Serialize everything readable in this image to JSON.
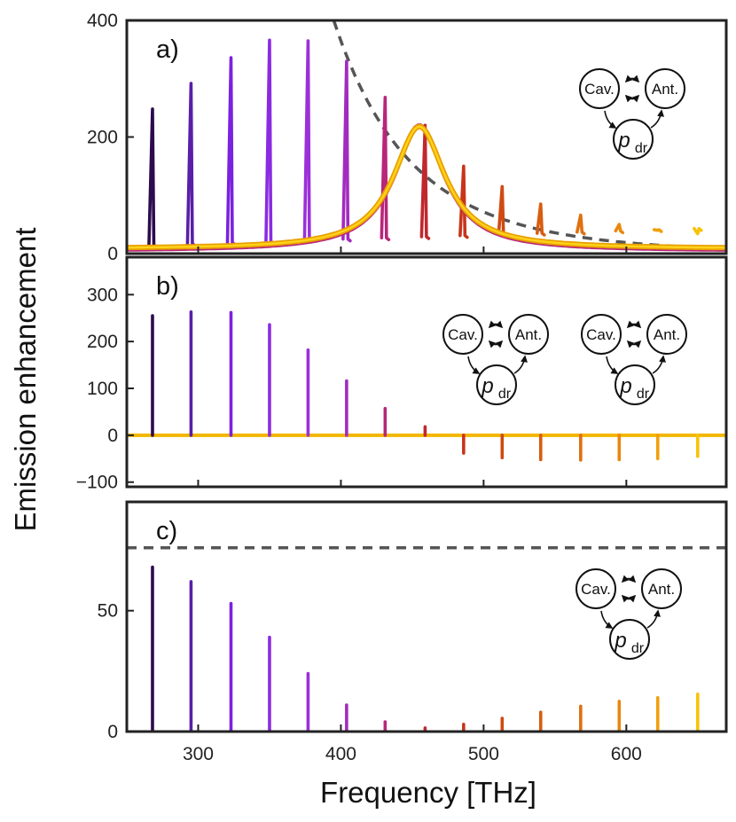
{
  "chart_data": [
    {
      "type": "line",
      "panel_label": "a)",
      "xlabel": "Frequency [THz]",
      "ylabel": "Emission enhancement",
      "xlim": [
        250,
        670
      ],
      "ylim": [
        0,
        400
      ],
      "yticks": [
        0,
        200,
        400
      ],
      "xticks": [
        300,
        400,
        500,
        600
      ],
      "peaks": [
        {
          "x": 268,
          "value": 248,
          "color": "#2d0b4e"
        },
        {
          "x": 295,
          "value": 292,
          "color": "#5a1fa8"
        },
        {
          "x": 323,
          "value": 336,
          "color": "#7a22e0"
        },
        {
          "x": 350,
          "value": 366,
          "color": "#8a2be2"
        },
        {
          "x": 377,
          "value": 365,
          "color": "#9b30d9"
        },
        {
          "x": 404,
          "value": 330,
          "color": "#a22bbf"
        },
        {
          "x": 431,
          "value": 268,
          "color": "#b8267a"
        },
        {
          "x": 459,
          "value": 220,
          "color": "#c0282e"
        },
        {
          "x": 486,
          "value": 150,
          "color": "#c8351a"
        },
        {
          "x": 513,
          "value": 115,
          "color": "#d04a12"
        },
        {
          "x": 540,
          "value": 85,
          "color": "#d85d10"
        },
        {
          "x": 568,
          "value": 66,
          "color": "#e07010"
        },
        {
          "x": 595,
          "value": 50,
          "color": "#e8880e"
        },
        {
          "x": 622,
          "value": 40,
          "color": "#f0a00c"
        },
        {
          "x": 650,
          "value": 34,
          "color": "#f7c20a"
        }
      ],
      "antenna_peak": {
        "center": 455,
        "value": 210,
        "width": 22
      },
      "envelope": {
        "dashed": true,
        "color": "#555555"
      },
      "diagram": {
        "nodes": [
          "Cav.",
          "Ant.",
          "p",
          "dr"
        ]
      }
    },
    {
      "type": "line",
      "panel_label": "b)",
      "xlim": [
        250,
        670
      ],
      "ylim": [
        -110,
        380
      ],
      "yticks": [
        -100,
        0,
        100,
        200,
        300
      ],
      "xticks": [
        300,
        400,
        500,
        600
      ],
      "peaks": [
        {
          "x": 268,
          "value": 255,
          "color": "#2d0b4e"
        },
        {
          "x": 295,
          "value": 263,
          "color": "#5a1fa8"
        },
        {
          "x": 323,
          "value": 262,
          "color": "#7a22e0"
        },
        {
          "x": 350,
          "value": 236,
          "color": "#8a2be2"
        },
        {
          "x": 377,
          "value": 182,
          "color": "#9b30d9"
        },
        {
          "x": 404,
          "value": 116,
          "color": "#a22bbf"
        },
        {
          "x": 431,
          "value": 57,
          "color": "#b8267a"
        },
        {
          "x": 459,
          "value": 18,
          "color": "#c0282e"
        },
        {
          "x": 486,
          "value": -38,
          "color": "#c8351a"
        },
        {
          "x": 513,
          "value": -48,
          "color": "#d04a12"
        },
        {
          "x": 540,
          "value": -52,
          "color": "#d85d10"
        },
        {
          "x": 568,
          "value": -53,
          "color": "#e07010"
        },
        {
          "x": 595,
          "value": -52,
          "color": "#e8880e"
        },
        {
          "x": 622,
          "value": -50,
          "color": "#f0a00c"
        },
        {
          "x": 650,
          "value": -45,
          "color": "#f7c20a"
        }
      ],
      "diagrams": [
        {
          "nodes": [
            "Cav.",
            "Ant.",
            "p",
            "dr"
          ]
        },
        {
          "nodes": [
            "Cav.",
            "Ant.",
            "p",
            "dr"
          ]
        }
      ]
    },
    {
      "type": "line",
      "panel_label": "c)",
      "xlim": [
        250,
        670
      ],
      "ylim": [
        0,
        95
      ],
      "yticks": [
        0,
        50
      ],
      "xticks": [
        300,
        400,
        500,
        600
      ],
      "peaks": [
        {
          "x": 268,
          "value": 68,
          "color": "#2d0b4e"
        },
        {
          "x": 295,
          "value": 62,
          "color": "#5a1fa8"
        },
        {
          "x": 323,
          "value": 53,
          "color": "#7a22e0"
        },
        {
          "x": 350,
          "value": 39,
          "color": "#8a2be2"
        },
        {
          "x": 377,
          "value": 24,
          "color": "#9b30d9"
        },
        {
          "x": 404,
          "value": 11,
          "color": "#a22bbf"
        },
        {
          "x": 431,
          "value": 4,
          "color": "#b8267a"
        },
        {
          "x": 459,
          "value": 1.5,
          "color": "#c0282e"
        },
        {
          "x": 486,
          "value": 3,
          "color": "#c8351a"
        },
        {
          "x": 513,
          "value": 5.5,
          "color": "#d04a12"
        },
        {
          "x": 540,
          "value": 8,
          "color": "#d85d10"
        },
        {
          "x": 568,
          "value": 10.5,
          "color": "#e07010"
        },
        {
          "x": 595,
          "value": 12.5,
          "color": "#e8880e"
        },
        {
          "x": 622,
          "value": 14,
          "color": "#f0a00c"
        },
        {
          "x": 650,
          "value": 15.5,
          "color": "#f7c20a"
        }
      ],
      "dashed_level": 76,
      "diagram": {
        "nodes": [
          "Cav.",
          "Ant.",
          "p",
          "dr"
        ]
      }
    }
  ]
}
